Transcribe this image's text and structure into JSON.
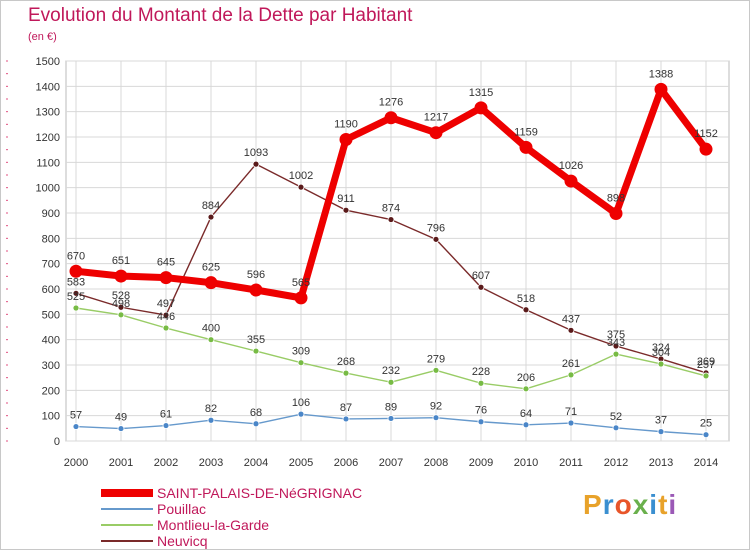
{
  "title": "Evolution du Montant de la Dette par Habitant",
  "unit": "(en €)",
  "logo": {
    "text": "Proxiti",
    "letter_colors": [
      "#e8a22a",
      "#3a8fd0",
      "#e8552a",
      "#6ab04c",
      "#3a8fd0",
      "#e8a22a",
      "#9b59b6"
    ]
  },
  "chart_data": {
    "type": "line",
    "x": [
      2000,
      2001,
      2002,
      2003,
      2004,
      2005,
      2006,
      2007,
      2008,
      2009,
      2010,
      2011,
      2012,
      2013,
      2014
    ],
    "ylim": [
      0,
      1500
    ],
    "yticks": [
      0,
      100,
      200,
      300,
      400,
      500,
      600,
      700,
      800,
      900,
      1000,
      1100,
      1200,
      1300,
      1400,
      1500
    ],
    "grid": true,
    "legend_position": "bottom-left",
    "series": [
      {
        "name": "Neuvicq",
        "color": "#7a2a2a",
        "marker_color": "#5a1a1a",
        "values": [
          583,
          528,
          497,
          884,
          1093,
          1002,
          911,
          874,
          796,
          607,
          518,
          437,
          375,
          324,
          269
        ]
      },
      {
        "name": "Montlieu-la-Garde",
        "color": "#99cc66",
        "marker_color": "#77bb44",
        "values": [
          525,
          498,
          446,
          400,
          355,
          309,
          268,
          232,
          279,
          228,
          206,
          261,
          343,
          304,
          257
        ]
      },
      {
        "name": "Pouillac",
        "color": "#6699cc",
        "marker_color": "#4a86c8",
        "values": [
          57,
          49,
          61,
          82,
          68,
          106,
          87,
          89,
          92,
          76,
          64,
          71,
          52,
          37,
          25
        ]
      },
      {
        "name": "SAINT-PALAIS-DE-NéGRIGNAC",
        "color": "#ee0000",
        "marker_color": "#ee0000",
        "values": [
          670,
          651,
          645,
          625,
          596,
          565,
          1190,
          1276,
          1217,
          1315,
          1159,
          1026,
          898,
          1388,
          1152
        ]
      }
    ],
    "legend_order": [
      "SAINT-PALAIS-DE-NéGRIGNAC",
      "Pouillac",
      "Montlieu-la-Garde",
      "Neuvicq"
    ]
  }
}
